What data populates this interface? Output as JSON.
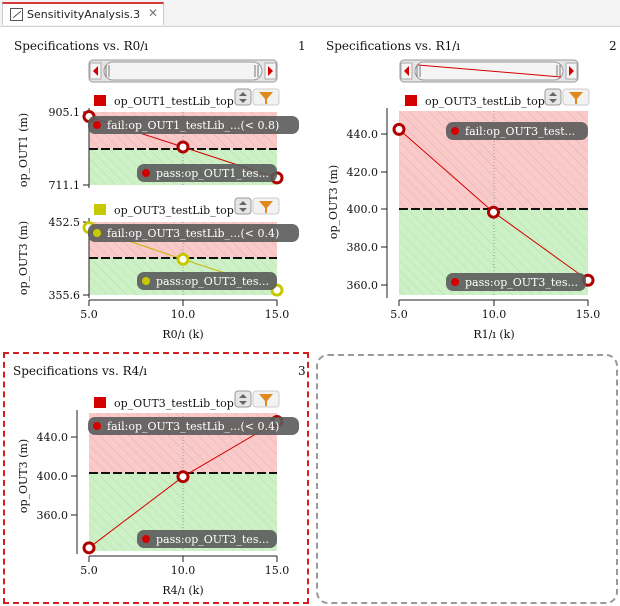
{
  "tab": {
    "title": "SensitivityAnalysis.3",
    "close_glyph": "✕",
    "icon": "chart-document-icon"
  },
  "colors": {
    "fail_zone": "#f7c9c9",
    "pass_zone": "#c9efc4",
    "red_series": "#d40000",
    "yellow_series": "#c8c800",
    "pill_bg": "#555555"
  },
  "panels": [
    {
      "title": "Specifications vs. R0/ı",
      "number": "1",
      "xlabel": "R0/ı (k)",
      "xticks": [
        "5.0",
        "10.0",
        "15.0"
      ],
      "subplots": [
        {
          "ylabel": "op_OUT1 (m)",
          "legend": "op_OUT1_testLib_top",
          "ymax_label": "905.1",
          "ymin_label": "711.1",
          "fail_label": "fail:op_OUT1_testLib_...(< 0.8)",
          "pass_label": "pass:op_OUT1_tes..."
        },
        {
          "ylabel": "op_OUT3 (m)",
          "legend": "op_OUT3_testLib_top",
          "ymax_label": "452.5",
          "ymin_label": "355.6",
          "fail_label": "fail:op_OUT3_testLib_...(< 0.4)",
          "pass_label": "pass:op_OUT3_tes..."
        }
      ]
    },
    {
      "title": "Specifications vs. R1/ı",
      "number": "2",
      "xlabel": "R1/ı (k)",
      "xticks": [
        "5.0",
        "10.0",
        "15.0"
      ],
      "ylabel": "op_OUT3 (m)",
      "legend": "op_OUT3_testLib_top",
      "yticks": [
        "440.0",
        "420.0",
        "400.0",
        "380.0",
        "360.0"
      ],
      "fail_label": "fail:op_OUT3_test...",
      "pass_label": "pass:op_OUT3_tes..."
    },
    {
      "title": "Specifications vs. R4/ı",
      "number": "3",
      "xlabel": "R4/ı (k)",
      "xticks": [
        "5.0",
        "10.0",
        "15.0"
      ],
      "ylabel": "op_OUT3 (m)",
      "legend": "op_OUT3_testLib_top",
      "yticks": [
        "440.0",
        "400.0",
        "360.0"
      ],
      "fail_label": "fail:op_OUT3_testLib_...(< 0.4)",
      "pass_label": "pass:op_OUT3_tes..."
    }
  ],
  "chart_data": [
    {
      "type": "line",
      "title": "Specifications vs. R0/ı",
      "xlabel": "R0/ı (k)",
      "ylabel": "op_OUT1 (m)",
      "x": [
        5.0,
        10.0,
        15.0
      ],
      "series": [
        {
          "name": "op_OUT1_testLib_top",
          "values": [
            893,
            812,
            730
          ]
        }
      ],
      "spec_limit": 812,
      "ylim": [
        711.1,
        905.1
      ]
    },
    {
      "type": "line",
      "title": "Specifications vs. R0/ı",
      "xlabel": "R0/ı (k)",
      "ylabel": "op_OUT3 (m)",
      "x": [
        5.0,
        10.0,
        15.0
      ],
      "series": [
        {
          "name": "op_OUT3_testLib_top",
          "values": [
            445,
            403,
            362
          ]
        }
      ],
      "spec_limit": 403,
      "ylim": [
        355.6,
        452.5
      ]
    },
    {
      "type": "line",
      "title": "Specifications vs. R1/ı",
      "xlabel": "R1/ı (k)",
      "ylabel": "op_OUT3 (m)",
      "x": [
        5.0,
        10.0,
        15.0
      ],
      "series": [
        {
          "name": "op_OUT3_testLib_top",
          "values": [
            445,
            400,
            363
          ]
        }
      ],
      "spec_limit": 400,
      "ylim": [
        355,
        455
      ]
    },
    {
      "type": "line",
      "title": "Specifications vs. R4/ı",
      "xlabel": "R4/ı (k)",
      "ylabel": "op_OUT3 (m)",
      "x": [
        5.0,
        10.0,
        15.0
      ],
      "series": [
        {
          "name": "op_OUT3_testLib_top",
          "values": [
            333,
            400,
            452
          ]
        }
      ],
      "spec_limit": 402,
      "ylim": [
        330,
        460
      ]
    }
  ]
}
